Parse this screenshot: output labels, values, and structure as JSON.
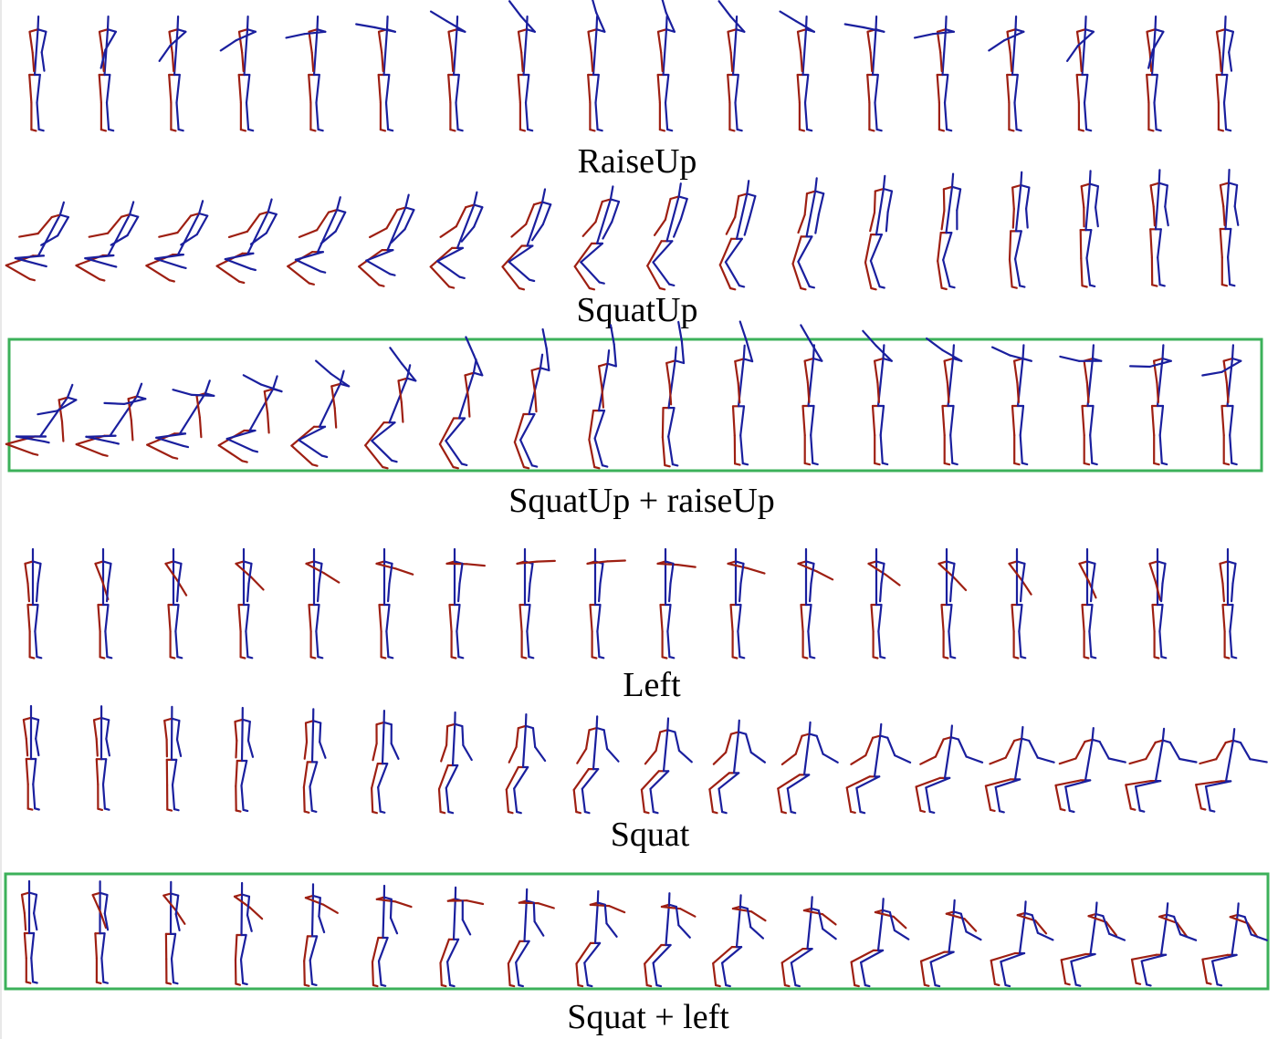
{
  "colors": {
    "left_side": "#9e1f12",
    "right_side": "#1a1f9e",
    "highlight_box": "#3cb15a"
  },
  "rows": [
    {
      "label": "RaiseUp",
      "motion": "raiseUp",
      "frames": 18,
      "highlighted": false
    },
    {
      "label": "SquatUp",
      "motion": "squatUp",
      "frames": 18,
      "highlighted": false
    },
    {
      "label": "SquatUp + raiseUp",
      "motion": "squatRaise",
      "frames": 18,
      "highlighted": true
    },
    {
      "label": "Left",
      "motion": "left",
      "frames": 18,
      "highlighted": false
    },
    {
      "label": "Squat",
      "motion": "squat",
      "frames": 18,
      "highlighted": false
    },
    {
      "label": "Squat + left",
      "motion": "squatLeft",
      "frames": 18,
      "highlighted": true
    }
  ]
}
